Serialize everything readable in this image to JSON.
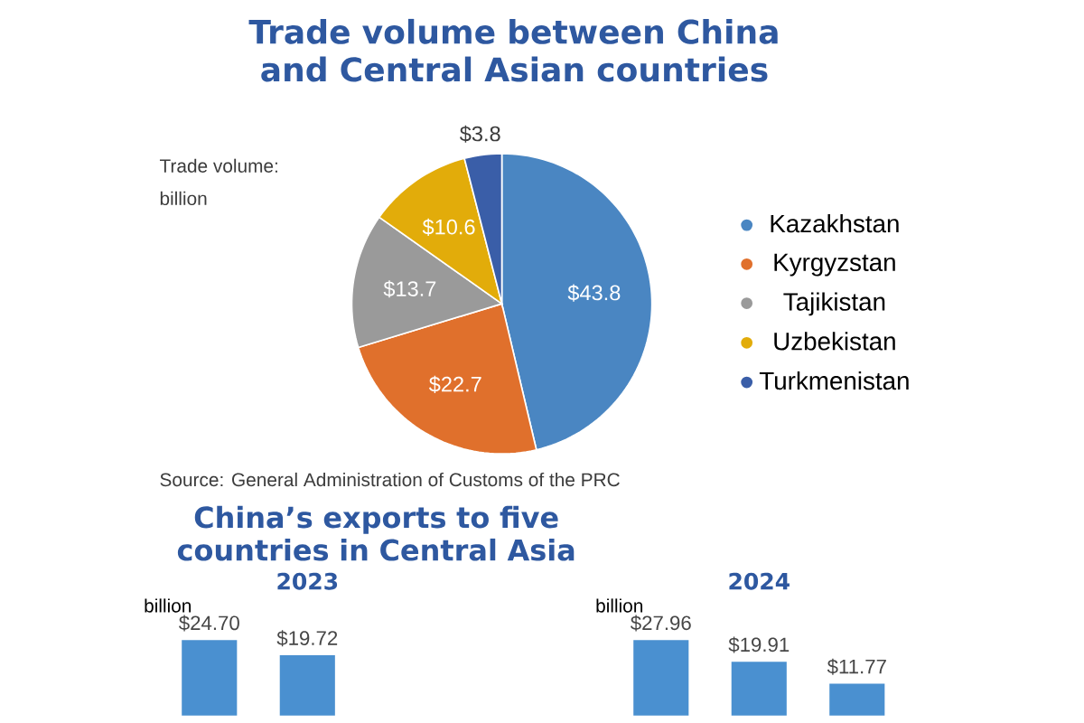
{
  "chart_data": [
    {
      "type": "pie",
      "title": "Trade volume between China and Central Asian countries",
      "categories": [
        "Kazakhstan",
        "Kyrgyzstan",
        "Tajikistan",
        "Uzbekistan",
        "Turkmenistan"
      ],
      "values": [
        43.8,
        22.7,
        13.7,
        10.6,
        3.8
      ],
      "value_labels": [
        "$43.8",
        "$22.7",
        "$13.7",
        "$10.6",
        "$3.8"
      ],
      "colors": [
        "#4a86c2",
        "#e0702c",
        "#9a9a9a",
        "#e2ac0a",
        "#3a5ea8"
      ],
      "legend": "right",
      "annotations": [
        "Trade volume:",
        "billion",
        "Source: General Administration of Customs of the PRC"
      ]
    },
    {
      "type": "bar",
      "title": "China’s exports to five countries in Central Asia",
      "subtitle": "2023",
      "ylabel": "billion",
      "categories": [
        null,
        null
      ],
      "values": [
        24.7,
        19.72
      ],
      "value_labels": [
        "$24.70",
        "$19.72"
      ],
      "color": "#4a90d0"
    },
    {
      "type": "bar",
      "subtitle": "2024",
      "ylabel": "billion",
      "categories": [
        null,
        null,
        null
      ],
      "values": [
        27.96,
        19.91,
        11.77
      ],
      "value_labels": [
        "$27.96",
        "$19.91",
        "$11.77"
      ],
      "color": "#4a90d0"
    }
  ]
}
